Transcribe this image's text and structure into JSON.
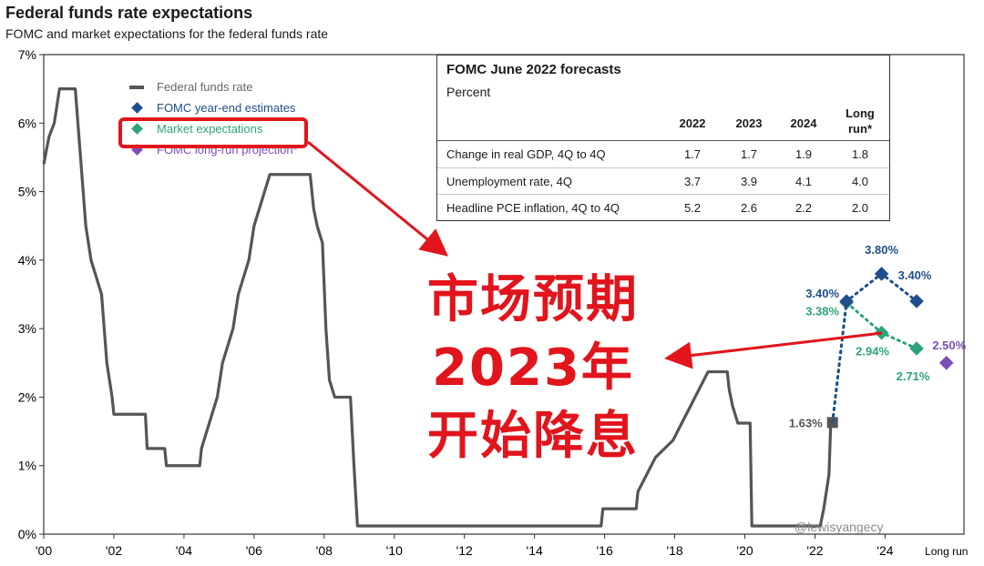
{
  "header": {
    "title": "Federal funds rate expectations",
    "subtitle": "FOMC and market expectations for the federal funds rate"
  },
  "legend": {
    "items": [
      {
        "label": "Federal funds rate",
        "color": "#555555",
        "symbol": "line"
      },
      {
        "label": "FOMC year-end estimates",
        "color": "#1f4e8c",
        "symbol": "diamond"
      },
      {
        "label": "Market expectations",
        "color": "#2ea27a",
        "symbol": "diamond"
      },
      {
        "label": "FOMC long-run projection*",
        "color": "#7b4fb5",
        "symbol": "diamond"
      }
    ]
  },
  "forecast_table": {
    "title": "FOMC June 2022 forecasts",
    "unit": "Percent",
    "columns": [
      "2022",
      "2023",
      "2024",
      "Long run*"
    ],
    "rows": [
      {
        "label": "Change in real GDP, 4Q to 4Q",
        "values": [
          "1.7",
          "1.7",
          "1.9",
          "1.8"
        ]
      },
      {
        "label": "Unemployment rate, 4Q",
        "values": [
          "3.7",
          "3.9",
          "4.1",
          "4.0"
        ]
      },
      {
        "label": "Headline PCE inflation, 4Q to 4Q",
        "values": [
          "5.2",
          "2.6",
          "2.2",
          "2.0"
        ]
      }
    ]
  },
  "annotation": {
    "lines": [
      "市场预期",
      "2023年",
      "开始降息"
    ],
    "color": "#e2141c"
  },
  "watermark": "@lewisyangecy",
  "chart_data": {
    "type": "line",
    "ylim": [
      0,
      7
    ],
    "y_ticks": [
      "0%",
      "1%",
      "2%",
      "3%",
      "4%",
      "5%",
      "6%",
      "7%"
    ],
    "x_ticks": [
      {
        "label": "'00",
        "x": 2000
      },
      {
        "label": "'02",
        "x": 2002
      },
      {
        "label": "'04",
        "x": 2004
      },
      {
        "label": "'06",
        "x": 2006
      },
      {
        "label": "'08",
        "x": 2008
      },
      {
        "label": "'10",
        "x": 2010
      },
      {
        "label": "'12",
        "x": 2012
      },
      {
        "label": "'14",
        "x": 2014
      },
      {
        "label": "'16",
        "x": 2016
      },
      {
        "label": "'18",
        "x": 2018
      },
      {
        "label": "'20",
        "x": 2020
      },
      {
        "label": "'22",
        "x": 2022
      },
      {
        "label": "'24",
        "x": 2024
      },
      {
        "label": "Long run",
        "x": 2025.75
      }
    ],
    "grid": false,
    "series": [
      {
        "name": "Federal funds rate",
        "color": "#555555",
        "points": [
          [
            2000.0,
            5.4
          ],
          [
            2000.15,
            5.8
          ],
          [
            2000.3,
            6.0
          ],
          [
            2000.45,
            6.5
          ],
          [
            2000.9,
            6.5
          ],
          [
            2001.05,
            5.5
          ],
          [
            2001.2,
            4.5
          ],
          [
            2001.35,
            4.0
          ],
          [
            2001.5,
            3.75
          ],
          [
            2001.65,
            3.5
          ],
          [
            2001.8,
            2.5
          ],
          [
            2001.95,
            2.0
          ],
          [
            2002.0,
            1.75
          ],
          [
            2002.9,
            1.75
          ],
          [
            2002.95,
            1.25
          ],
          [
            2003.45,
            1.25
          ],
          [
            2003.5,
            1.0
          ],
          [
            2004.45,
            1.0
          ],
          [
            2004.5,
            1.25
          ],
          [
            2004.65,
            1.5
          ],
          [
            2004.8,
            1.75
          ],
          [
            2004.95,
            2.0
          ],
          [
            2005.1,
            2.5
          ],
          [
            2005.25,
            2.75
          ],
          [
            2005.4,
            3.0
          ],
          [
            2005.55,
            3.5
          ],
          [
            2005.7,
            3.75
          ],
          [
            2005.85,
            4.0
          ],
          [
            2006.0,
            4.5
          ],
          [
            2006.15,
            4.75
          ],
          [
            2006.3,
            5.0
          ],
          [
            2006.45,
            5.25
          ],
          [
            2007.6,
            5.25
          ],
          [
            2007.7,
            4.75
          ],
          [
            2007.8,
            4.5
          ],
          [
            2007.95,
            4.25
          ],
          [
            2008.05,
            3.0
          ],
          [
            2008.15,
            2.25
          ],
          [
            2008.3,
            2.0
          ],
          [
            2008.75,
            2.0
          ],
          [
            2008.85,
            1.0
          ],
          [
            2008.95,
            0.12
          ],
          [
            2015.9,
            0.12
          ],
          [
            2015.95,
            0.37
          ],
          [
            2016.9,
            0.37
          ],
          [
            2016.95,
            0.62
          ],
          [
            2017.2,
            0.87
          ],
          [
            2017.45,
            1.12
          ],
          [
            2017.95,
            1.37
          ],
          [
            2018.2,
            1.62
          ],
          [
            2018.45,
            1.87
          ],
          [
            2018.7,
            2.12
          ],
          [
            2018.95,
            2.37
          ],
          [
            2019.5,
            2.37
          ],
          [
            2019.55,
            2.12
          ],
          [
            2019.65,
            1.87
          ],
          [
            2019.8,
            1.62
          ],
          [
            2020.15,
            1.62
          ],
          [
            2020.2,
            0.12
          ],
          [
            2022.15,
            0.12
          ],
          [
            2022.25,
            0.37
          ],
          [
            2022.4,
            0.87
          ],
          [
            2022.45,
            1.62
          ],
          [
            2022.5,
            1.63
          ]
        ]
      },
      {
        "name": "FOMC year-end estimates",
        "color": "#1f4e8c",
        "points": [
          [
            2022.5,
            1.63
          ],
          [
            2022.9,
            3.4
          ],
          [
            2023.9,
            3.8
          ],
          [
            2024.9,
            3.4
          ]
        ],
        "labels": [
          "",
          "3.40%",
          "3.80%",
          "3.40%"
        ]
      },
      {
        "name": "Market expectations",
        "color": "#2ea27a",
        "points": [
          [
            2022.5,
            1.63
          ],
          [
            2022.9,
            3.38
          ],
          [
            2023.9,
            2.94
          ],
          [
            2024.9,
            2.71
          ]
        ],
        "labels": [
          "",
          "3.38%",
          "2.94%",
          "2.71%"
        ]
      },
      {
        "name": "FOMC long-run projection",
        "color": "#7b4fb5",
        "points": [
          [
            2025.75,
            2.5
          ]
        ],
        "labels": [
          "2.50%"
        ]
      }
    ],
    "annotations": [
      {
        "text": "1.63%",
        "x": 2022.5,
        "y": 1.63
      }
    ]
  }
}
